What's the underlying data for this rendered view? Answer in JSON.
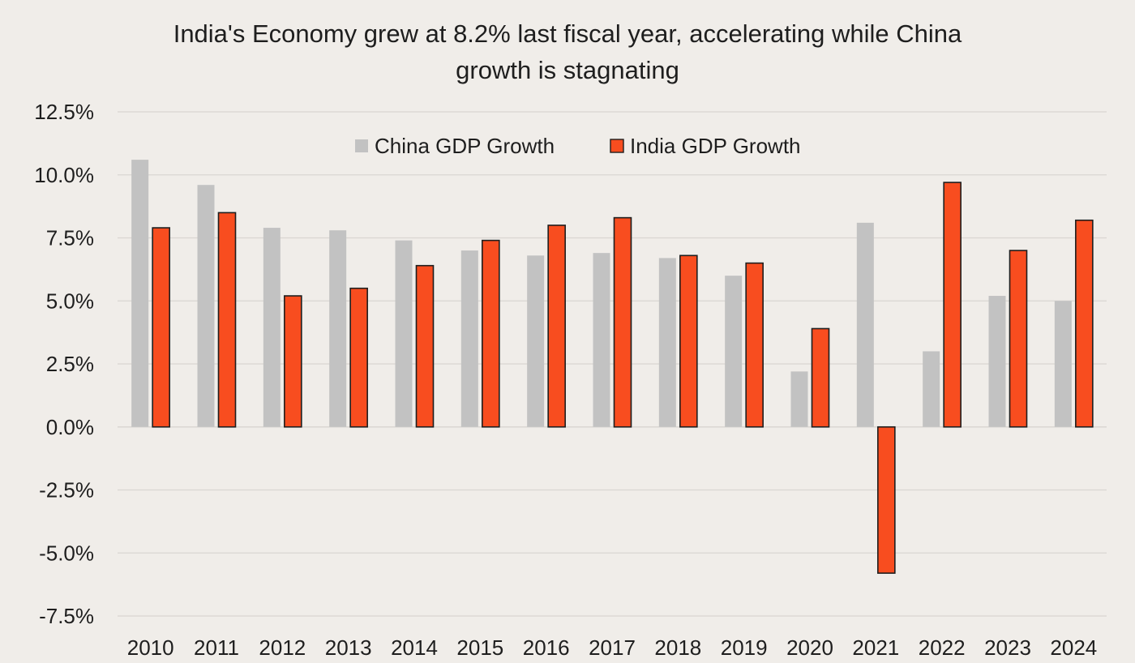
{
  "chart_data": {
    "type": "bar",
    "title_lines": [
      "India's Economy grew at 8.2% last fiscal year, accelerating while China",
      "growth is stagnating"
    ],
    "categories": [
      "2010",
      "2011",
      "2012",
      "2013",
      "2014",
      "2015",
      "2016",
      "2017",
      "2018",
      "2019",
      "2020",
      "2021",
      "2022",
      "2023",
      "2024"
    ],
    "series": [
      {
        "name": "China GDP Growth",
        "color": "#c2c2c2",
        "outlined": false,
        "values": [
          10.6,
          9.6,
          7.9,
          7.8,
          7.4,
          7.0,
          6.8,
          6.9,
          6.7,
          6.0,
          2.2,
          8.1,
          3.0,
          5.2,
          5.0
        ]
      },
      {
        "name": "India GDP Growth",
        "color": "#f84d1f",
        "outlined": true,
        "values": [
          7.9,
          8.5,
          5.2,
          5.5,
          6.4,
          7.4,
          8.0,
          8.3,
          6.8,
          6.5,
          3.9,
          -5.8,
          9.7,
          7.0,
          8.2
        ]
      }
    ],
    "ylim": [
      -7.5,
      12.5
    ],
    "yticks": [
      12.5,
      10.0,
      7.5,
      5.0,
      2.5,
      0.0,
      -2.5,
      -5.0,
      -7.5
    ],
    "ytick_labels": [
      "12.5%",
      "10.0%",
      "7.5%",
      "5.0%",
      "2.5%",
      "0.0%",
      "-2.5%",
      "-5.0%",
      "-7.5%"
    ],
    "xlabel": "",
    "ylabel": "",
    "grid": true,
    "legend_position": "top-center"
  }
}
